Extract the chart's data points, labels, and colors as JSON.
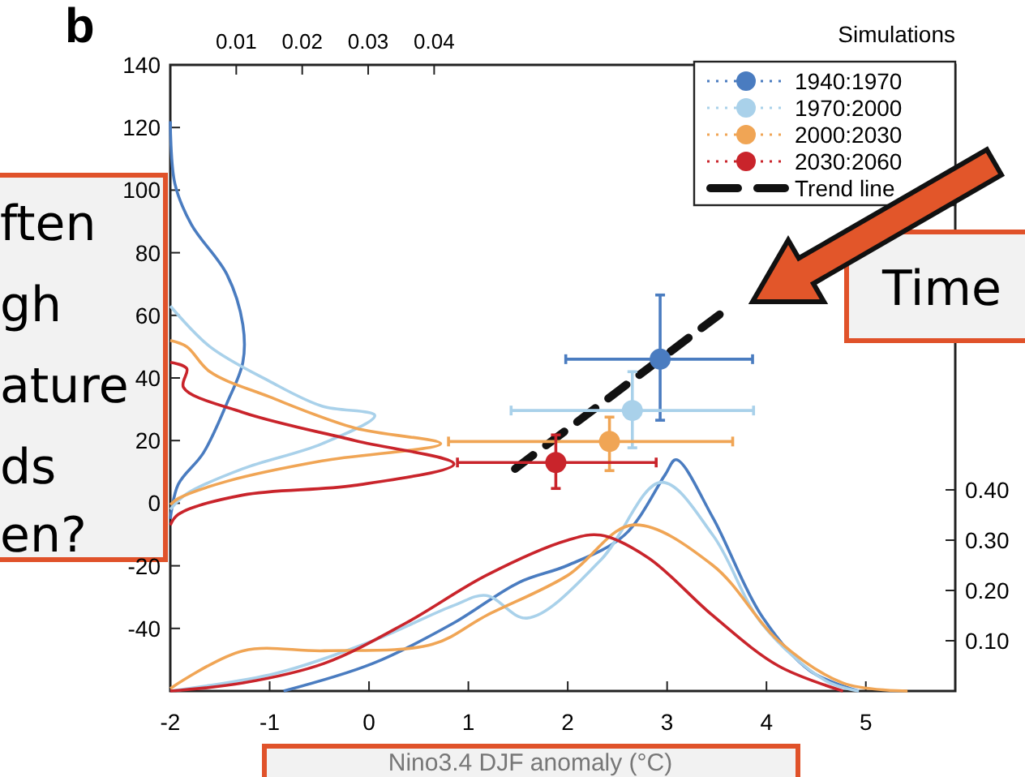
{
  "chart_data": {
    "type": "scatter",
    "xlabel": "Nino3.4 DJF anomaly (°C)",
    "legend_title": "Simulations",
    "annotations": [
      "b",
      "ften",
      "gh",
      "ature",
      "ds",
      "en?",
      "Time"
    ],
    "xlim": [
      -2,
      5.9
    ],
    "xticks": [
      -2,
      -1,
      0,
      1,
      2,
      3,
      4,
      5
    ],
    "ylim": [
      -60,
      140
    ],
    "yticks": [
      -40,
      -20,
      0,
      20,
      40,
      60,
      80,
      100,
      120,
      140
    ],
    "x2lim": [
      0,
      0.119
    ],
    "x2ticks": [
      0.01,
      0.02,
      0.03,
      0.04
    ],
    "y2lim": [
      0,
      1.245
    ],
    "y2ticks": [
      {
        "value": 0.1,
        "label": "0.10"
      },
      {
        "value": 0.2,
        "label": "0.20"
      },
      {
        "value": 0.3,
        "label": "0.30"
      },
      {
        "value": 0.4,
        "label": "0.40"
      }
    ],
    "legend": "top right",
    "marker": "circle",
    "grid": false,
    "series": [
      {
        "type": "line",
        "axis": "x2",
        "marker": "none",
        "color": "#4a7cc0",
        "x": [
          0,
          0.0007,
          0.0032,
          0.0086,
          0.011,
          0.011,
          0.0086,
          0.005,
          0.0012,
          0
        ],
        "values": [
          122,
          102,
          89,
          73,
          57,
          45,
          32,
          16,
          6,
          -5
        ]
      },
      {
        "type": "line",
        "axis": "x2",
        "marker": "none",
        "color": "#a9d1ea",
        "x": [
          0,
          0.006,
          0.015,
          0.023,
          0.031,
          0.023,
          0.011,
          0.0025,
          0
        ],
        "values": [
          63,
          50,
          39,
          31,
          28,
          19,
          11,
          3,
          -2
        ]
      },
      {
        "type": "line",
        "axis": "x2",
        "marker": "none",
        "color": "#f0a555",
        "x": [
          0,
          0.0025,
          0.006,
          0.015,
          0.028,
          0.041,
          0.023,
          0.0086,
          0.0012,
          0
        ],
        "values": [
          52,
          50,
          42,
          34,
          24,
          19,
          13.5,
          7,
          1.5,
          -0.5
        ]
      },
      {
        "type": "line",
        "axis": "x2",
        "marker": "none",
        "color": "#c9242b",
        "x": [
          0,
          0.0025,
          0.002,
          0.011,
          0.028,
          0.043,
          0.028,
          0.011,
          0.0012,
          0
        ],
        "values": [
          45,
          43,
          37,
          29,
          20,
          12.5,
          5.7,
          2.6,
          -3.6,
          -7
        ]
      },
      {
        "type": "line",
        "axis": "y2",
        "marker": "none",
        "color": "#4a7cc0",
        "x": [
          -0.86,
          0.04,
          0.85,
          1.51,
          2.0,
          2.57,
          2.98,
          3.09,
          3.46,
          3.95,
          4.44,
          4.93
        ],
        "values": [
          0,
          0.055,
          0.135,
          0.216,
          0.25,
          0.31,
          0.43,
          0.46,
          0.345,
          0.15,
          0.04,
          0
        ]
      },
      {
        "type": "line",
        "axis": "y2",
        "marker": "none",
        "color": "#a9d1ea",
        "x": [
          -2,
          -0.94,
          0.04,
          0.85,
          1.18,
          1.59,
          2.33,
          2.94,
          3.46,
          3.95,
          4.6,
          4.93
        ],
        "values": [
          0,
          0.035,
          0.1,
          0.17,
          0.19,
          0.145,
          0.26,
          0.415,
          0.31,
          0.135,
          0.02,
          0
        ]
      },
      {
        "type": "line",
        "axis": "y2",
        "marker": "none",
        "color": "#f0a555",
        "x": [
          -2,
          -1.27,
          -0.45,
          0.64,
          1.18,
          2.0,
          2.65,
          3.46,
          4.12,
          4.77,
          5.42
        ],
        "values": [
          0.005,
          0.08,
          0.08,
          0.093,
          0.15,
          0.23,
          0.33,
          0.25,
          0.1,
          0.016,
          0
        ]
      },
      {
        "type": "line",
        "axis": "y2",
        "marker": "none",
        "color": "#c9242b",
        "x": [
          -2,
          -1.27,
          -0.45,
          0.37,
          1.18,
          2.0,
          2.33,
          2.81,
          3.46,
          4.12,
          4.77
        ],
        "values": [
          0,
          0.016,
          0.055,
          0.135,
          0.23,
          0.3,
          0.31,
          0.265,
          0.15,
          0.05,
          0
        ]
      },
      {
        "name": "1940:1970",
        "color": "#4a7cc0",
        "x": [
          2.93
        ],
        "values": [
          46
        ],
        "errors": [
          [
            26.5,
            66.5
          ]
        ],
        "xerrors": [
          [
            1.98,
            3.86
          ]
        ]
      },
      {
        "name": "1970:2000",
        "color": "#a9d1ea",
        "x": [
          2.65
        ],
        "values": [
          29.6
        ],
        "errors": [
          [
            17.7,
            42
          ]
        ],
        "xerrors": [
          [
            1.43,
            3.87
          ]
        ]
      },
      {
        "name": "2000:2030",
        "color": "#f0a555",
        "x": [
          2.42
        ],
        "values": [
          19.7
        ],
        "errors": [
          [
            10.4,
            27.5
          ]
        ],
        "xerrors": [
          [
            0.8,
            3.66
          ]
        ]
      },
      {
        "name": "2030:2060",
        "color": "#c9242b",
        "x": [
          1.88
        ],
        "values": [
          13
        ],
        "errors": [
          [
            4.7,
            21.8
          ]
        ],
        "xerrors": [
          [
            0.89,
            2.89
          ]
        ]
      },
      {
        "type": "line",
        "name": "Trend line",
        "color": "#111111",
        "line_style": "dashed",
        "marker": "none",
        "x": [
          1.47,
          3.6
        ],
        "values": [
          11,
          62
        ]
      }
    ]
  }
}
